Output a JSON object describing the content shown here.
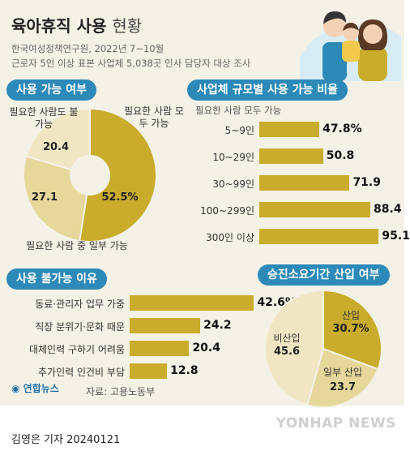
{
  "header": {
    "title_bold": "육아휴직 사용",
    "title_light": "현황",
    "source_line1": "한국여성정책연구원, 2022년 7~10월",
    "source_line2": "근로자 5인 이상 표본 사업체 5,038곳 인사 담당자 대상 조사"
  },
  "footer": {
    "logo": "연합뉴스",
    "source": "자료: 고용노동부",
    "byline": "김영은 기자  20240121",
    "watermark": "YONHAP NEWS"
  },
  "colors": {
    "gold": "#c9ac2c",
    "light_gold": "#e6d79a",
    "pale": "#f1e6c4",
    "pill_blue": "#2c89b8"
  },
  "chart_data": [
    {
      "type": "pie",
      "title": "사용 가능 여부",
      "categories": [
        "필요한 사람 모두 가능",
        "필요한 사람 중 일부 가능",
        "필요한 사람도 불가능"
      ],
      "values": [
        52.5,
        27.1,
        20.4
      ],
      "value_labels": [
        "52.5%",
        "27.1",
        "20.4"
      ],
      "donut": true,
      "colors": [
        "#c9ac2c",
        "#e6d79a",
        "#f1e6c4"
      ]
    },
    {
      "type": "bar",
      "title": "사업체 규모별 사용 가능 비율",
      "subtitle": "필요한 사람 모두 가능",
      "categories": [
        "5~9인",
        "10~29인",
        "30~99인",
        "100~299인",
        "300인 이상"
      ],
      "values": [
        47.8,
        50.8,
        71.9,
        88.4,
        95.1
      ],
      "value_labels": [
        "47.8%",
        "50.8",
        "71.9",
        "88.4",
        "95.1"
      ],
      "orientation": "horizontal",
      "xlim": [
        0,
        100
      ]
    },
    {
      "type": "bar",
      "title": "사용 불가능 이유",
      "categories": [
        "동료·관리자 업무 가중",
        "직장 분위기·문화 때문",
        "대체인력 구하기 어려움",
        "추가인력 인건비 부담"
      ],
      "values": [
        42.6,
        24.2,
        20.4,
        12.8
      ],
      "value_labels": [
        "42.6%",
        "24.2",
        "20.4",
        "12.8"
      ],
      "orientation": "horizontal",
      "xlim": [
        0,
        50
      ]
    },
    {
      "type": "pie",
      "title": "승진소요기간 산입 여부",
      "categories": [
        "산입",
        "일부 산입",
        "비산입"
      ],
      "values": [
        30.7,
        23.7,
        45.6
      ],
      "value_labels": [
        "30.7%",
        "23.7",
        "45.6"
      ],
      "colors": [
        "#c9ac2c",
        "#e6d79a",
        "#f1e6c4"
      ]
    }
  ]
}
